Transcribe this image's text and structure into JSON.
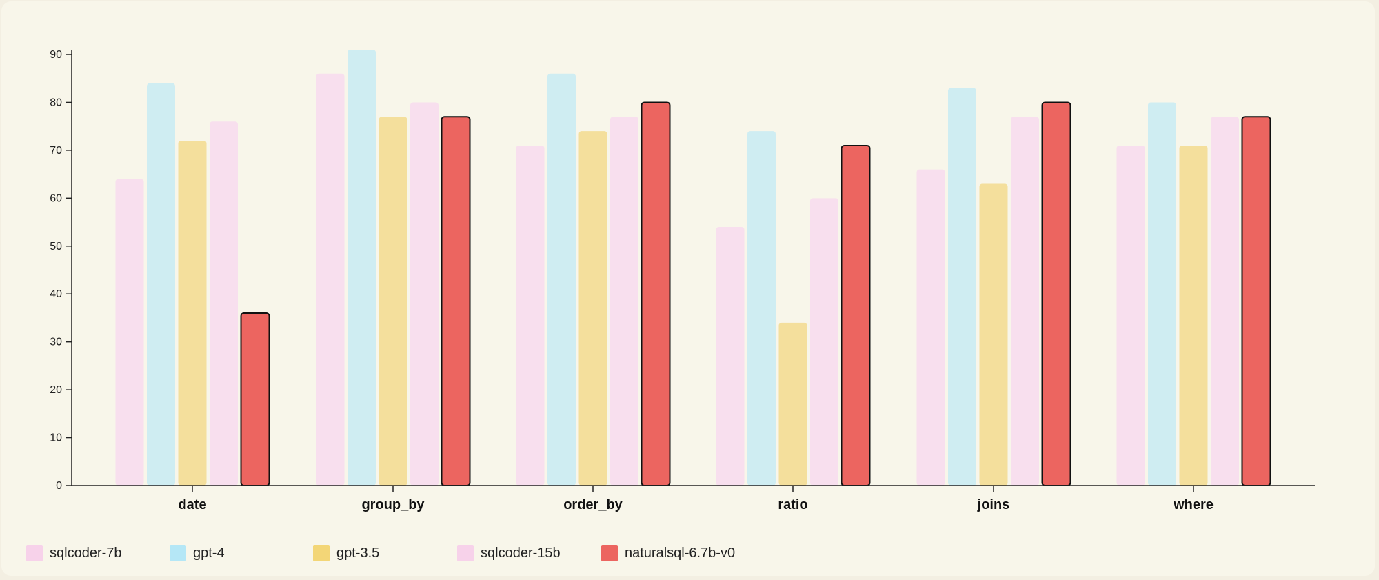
{
  "chart_data": {
    "type": "bar",
    "categories": [
      "date",
      "group_by",
      "order_by",
      "ratio",
      "joins",
      "where"
    ],
    "series": [
      {
        "name": "sqlcoder-7b",
        "color": "#f8dfee",
        "legend_color": "#f7d2ea",
        "values": [
          64,
          86,
          71,
          54,
          66,
          71
        ]
      },
      {
        "name": "gpt-4",
        "color": "#cfedf2",
        "legend_color": "#b5e7f6",
        "values": [
          84,
          91,
          86,
          74,
          83,
          80
        ]
      },
      {
        "name": "gpt-3.5",
        "color": "#f4df9c",
        "legend_color": "#f3d677",
        "values": [
          72,
          77,
          74,
          34,
          63,
          71
        ]
      },
      {
        "name": "sqlcoder-15b",
        "color": "#f8dfee",
        "legend_color": "#f7d2ea",
        "values": [
          76,
          80,
          77,
          60,
          77,
          77
        ]
      },
      {
        "name": "naturalsql-6.7b-v0",
        "color": "#ec6560",
        "legend_color": "#ec6560",
        "values": [
          36,
          77,
          80,
          71,
          80,
          77
        ],
        "highlight": true
      }
    ],
    "ylim": [
      0,
      90
    ],
    "yticks": [
      0,
      10,
      20,
      30,
      40,
      50,
      60,
      70,
      80,
      90
    ],
    "xlabel": "",
    "ylabel": "",
    "title": "",
    "grid": false,
    "legend_position": "bottom-left"
  }
}
